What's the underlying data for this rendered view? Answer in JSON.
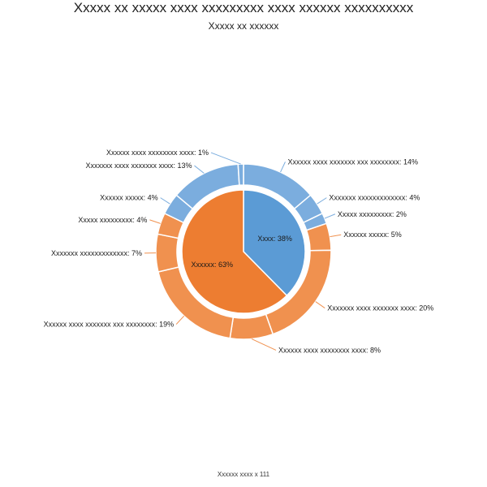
{
  "chart_data": {
    "type": "sunburst",
    "title": "Xxxxx xx xxxxx xxxx xxxxxxxxx xxxx xxxxxx xxxxxxxxxx",
    "subtitle": "Xxxxx xx xxxxxx",
    "footer": "Xxxxxx xxxx x 111",
    "inner": [
      {
        "label": "Xxxx: 38%",
        "value": 38,
        "color": "#5b9bd5"
      },
      {
        "label": "Xxxxxx: 63%",
        "value": 63,
        "color": "#ed7d31"
      }
    ],
    "outer": [
      {
        "parent": 0,
        "label": "Xxxxxx xxxx xxxxxxx xxx xxxxxxxx: 14%",
        "value": 14,
        "color": "#7badde"
      },
      {
        "parent": 0,
        "label": "Xxxxxxx xxxxxxxxxxxxx: 4%",
        "value": 4,
        "color": "#7badde"
      },
      {
        "parent": 0,
        "label": "Xxxxx xxxxxxxxx: 2%",
        "value": 2,
        "color": "#7badde"
      },
      {
        "parent": 1,
        "label": "Xxxxxx xxxxx: 5%",
        "value": 5,
        "color": "#f0914f"
      },
      {
        "parent": 1,
        "label": "Xxxxxxx xxxx xxxxxxx xxxx: 20%",
        "value": 20,
        "color": "#f0914f"
      },
      {
        "parent": 1,
        "label": "Xxxxxx xxxx xxxxxxxx xxxx: 8%",
        "value": 8,
        "color": "#f0914f"
      },
      {
        "parent": 1,
        "label": "Xxxxxx xxxx xxxxxxx xxx xxxxxxxx: 19%",
        "value": 19,
        "color": "#f0914f"
      },
      {
        "parent": 1,
        "label": "Xxxxxxx xxxxxxxxxxxxx: 7%",
        "value": 7,
        "color": "#f0914f"
      },
      {
        "parent": 1,
        "label": "Xxxxx xxxxxxxxx: 4%",
        "value": 4,
        "color": "#f0914f"
      },
      {
        "parent": 0,
        "label": "Xxxxxx xxxxx: 4%",
        "value": 4,
        "color": "#7badde"
      },
      {
        "parent": 0,
        "label": "Xxxxxxx xxxx xxxxxxx xxxx: 13%",
        "value": 13,
        "color": "#7badde"
      },
      {
        "parent": 0,
        "label": "Xxxxxx xxxx xxxxxxxx xxxx: 1%",
        "value": 1,
        "color": "#7badde"
      }
    ]
  }
}
